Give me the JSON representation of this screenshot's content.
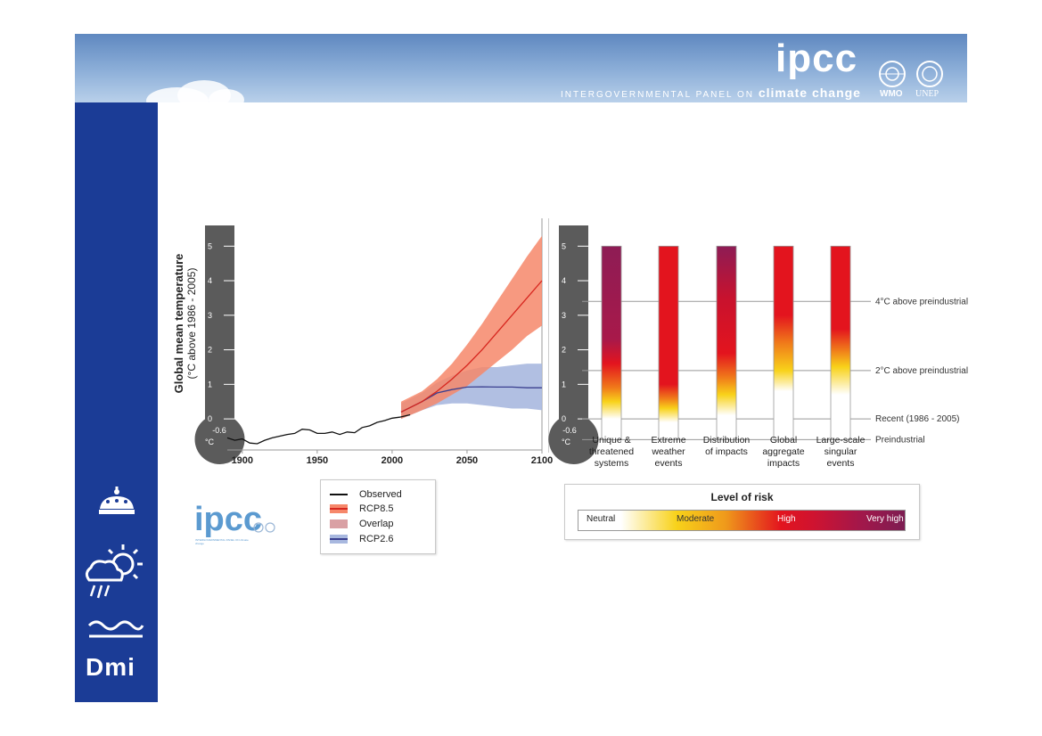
{
  "header": {
    "logo_text": "ipcc",
    "org_text": "INTERGOVERNMENTAL PANEL ON",
    "org_text_2": "climate change",
    "wmo_label": "WMO",
    "unep_label": "UNEP"
  },
  "sidebar": {
    "logo_text": "Dmi"
  },
  "small_logo": {
    "text": "ipcc",
    "subtitle": "INTERGOVERNMENTAL PANEL ON climate change"
  },
  "colors": {
    "sidebar": "#1b3c96",
    "rcp85_line": "#d7261e",
    "rcp85_band": "#f6876a",
    "overlap_band": "#d9a0a4",
    "rcp26_line": "#3a3f8f",
    "rcp26_band": "#a8b8df",
    "observed": "#111111",
    "thermometer": "#5b5b5b"
  },
  "chart_data": [
    {
      "type": "line",
      "title": "",
      "ylabel": "Global mean temperature",
      "ylabel_sub": "(°C above 1986 - 2005)",
      "xlim": [
        1890,
        2100
      ],
      "ylim": [
        -0.9,
        5.6
      ],
      "x_ticks": [
        "1900",
        "1950",
        "2000",
        "2050",
        "2100"
      ],
      "x_tick_values": [
        1900,
        1950,
        2000,
        2050,
        2100
      ],
      "y_ticks": [
        "5",
        "4",
        "3",
        "2",
        "1",
        "0"
      ],
      "y_tick_values": [
        5,
        4,
        3,
        2,
        1,
        0
      ],
      "thermometer_label": "-0.6",
      "thermometer_unit": "°C",
      "legend_position": "below",
      "series": [
        {
          "name": "Observed",
          "x": [
            1890,
            1895,
            1900,
            1905,
            1910,
            1915,
            1920,
            1925,
            1930,
            1935,
            1940,
            1945,
            1950,
            1955,
            1960,
            1965,
            1970,
            1975,
            1980,
            1985,
            1990,
            1995,
            2000,
            2005,
            2010,
            2012
          ],
          "y": [
            -0.55,
            -0.62,
            -0.58,
            -0.7,
            -0.72,
            -0.62,
            -0.55,
            -0.5,
            -0.45,
            -0.42,
            -0.3,
            -0.32,
            -0.42,
            -0.42,
            -0.38,
            -0.45,
            -0.38,
            -0.4,
            -0.25,
            -0.2,
            -0.1,
            -0.05,
            0.02,
            0.05,
            0.1,
            0.12
          ]
        },
        {
          "name": "RCP8.5",
          "x": [
            2006,
            2020,
            2030,
            2040,
            2050,
            2060,
            2070,
            2080,
            2090,
            2100
          ],
          "y": [
            0.2,
            0.5,
            0.8,
            1.15,
            1.55,
            2.0,
            2.5,
            3.0,
            3.5,
            4.0
          ],
          "lower": [
            0.0,
            0.25,
            0.45,
            0.7,
            0.95,
            1.3,
            1.65,
            2.0,
            2.4,
            2.7
          ],
          "upper": [
            0.5,
            0.8,
            1.15,
            1.6,
            2.15,
            2.75,
            3.4,
            4.05,
            4.7,
            5.3
          ]
        },
        {
          "name": "RCP2.6",
          "x": [
            2006,
            2020,
            2030,
            2040,
            2050,
            2060,
            2070,
            2080,
            2090,
            2100
          ],
          "y": [
            0.2,
            0.5,
            0.75,
            0.85,
            0.92,
            0.93,
            0.92,
            0.92,
            0.9,
            0.9
          ],
          "lower": [
            0.0,
            0.25,
            0.4,
            0.45,
            0.45,
            0.4,
            0.35,
            0.3,
            0.3,
            0.25
          ],
          "upper": [
            0.45,
            0.75,
            1.05,
            1.25,
            1.4,
            1.5,
            1.5,
            1.55,
            1.6,
            1.6
          ]
        },
        {
          "name": "Overlap"
        }
      ]
    },
    {
      "type": "heatmap",
      "title": "Level of risk",
      "categories": [
        "Unique & threatened systems",
        "Extreme weather events",
        "Distribution of impacts",
        "Global aggregate impacts",
        "Large-scale singular events"
      ],
      "category_lines": [
        [
          "Unique &",
          "threatened",
          "systems"
        ],
        [
          "Extreme",
          "weather",
          "events"
        ],
        [
          "Distribution",
          "of impacts"
        ],
        [
          "Global",
          "aggregate",
          "impacts"
        ],
        [
          "Large-scale",
          "singular",
          "events"
        ]
      ],
      "ylim": [
        -0.9,
        5.6
      ],
      "y_ticks": [
        "5",
        "4",
        "3",
        "2",
        "1",
        "0"
      ],
      "y_tick_values": [
        5,
        4,
        3,
        2,
        1,
        0
      ],
      "thermometer_label": "-0.6",
      "thermometer_unit": "°C",
      "reference_lines": [
        {
          "label": "4°C above preindustrial",
          "value": 3.4
        },
        {
          "label": "2°C above preindustrial",
          "value": 1.4
        },
        {
          "label": "Recent (1986 - 2005)",
          "value": 0
        },
        {
          "label": "Preindustrial",
          "value": -0.6
        }
      ],
      "risk_levels": [
        "Neutral",
        "Moderate",
        "High",
        "Very high"
      ],
      "risk_colors": [
        "#ffffff",
        "#f8d21a",
        "#e3141e",
        "#7d1d52"
      ],
      "bars": [
        {
          "stops": [
            {
              "t": 5.0,
              "c": "#8e1c55"
            },
            {
              "t": 2.3,
              "c": "#a8194a"
            },
            {
              "t": 1.6,
              "c": "#e3141e"
            },
            {
              "t": 0.9,
              "c": "#f07a1a"
            },
            {
              "t": 0.5,
              "c": "#f8d21a"
            },
            {
              "t": 0.0,
              "c": "#ffffff"
            }
          ]
        },
        {
          "stops": [
            {
              "t": 5.0,
              "c": "#e3141e"
            },
            {
              "t": 1.0,
              "c": "#e3141e"
            },
            {
              "t": 0.6,
              "c": "#f07a1a"
            },
            {
              "t": 0.3,
              "c": "#f8d21a"
            },
            {
              "t": -0.1,
              "c": "#ffffff"
            }
          ]
        },
        {
          "stops": [
            {
              "t": 5.0,
              "c": "#8e1c55"
            },
            {
              "t": 3.5,
              "c": "#c8122e"
            },
            {
              "t": 1.9,
              "c": "#e3141e"
            },
            {
              "t": 1.2,
              "c": "#f07a1a"
            },
            {
              "t": 0.7,
              "c": "#f8d21a"
            },
            {
              "t": 0.1,
              "c": "#ffffff"
            }
          ]
        },
        {
          "stops": [
            {
              "t": 5.0,
              "c": "#e3141e"
            },
            {
              "t": 3.0,
              "c": "#e3141e"
            },
            {
              "t": 2.2,
              "c": "#f07a1a"
            },
            {
              "t": 1.4,
              "c": "#f8d21a"
            },
            {
              "t": 0.8,
              "c": "#ffffff"
            }
          ]
        },
        {
          "stops": [
            {
              "t": 5.0,
              "c": "#e3141e"
            },
            {
              "t": 2.6,
              "c": "#e3141e"
            },
            {
              "t": 2.0,
              "c": "#f07a1a"
            },
            {
              "t": 1.5,
              "c": "#f8d21a"
            },
            {
              "t": 0.7,
              "c": "#ffffff"
            }
          ]
        }
      ]
    }
  ]
}
